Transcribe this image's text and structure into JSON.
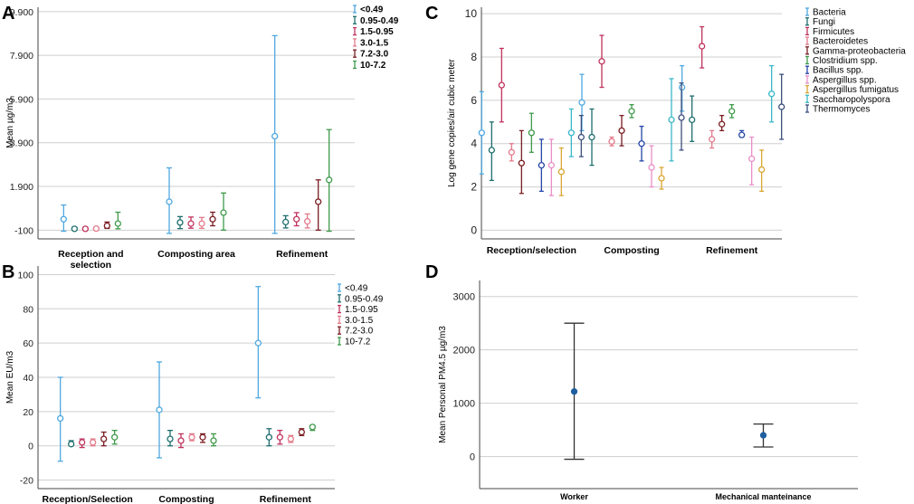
{
  "figure": {
    "panels": [
      "A",
      "B",
      "C",
      "D"
    ]
  },
  "chart_data": [
    {
      "panel": "A",
      "type": "errorbar",
      "ylabel": "Mean µg/m3",
      "yticks": [
        "-100",
        "1.900",
        "3.900",
        "5.900",
        "7.900",
        "9.900"
      ],
      "ytick_values": [
        -100,
        1900,
        3900,
        5900,
        7900,
        9900
      ],
      "ylim": [
        -500,
        10100
      ],
      "categories": [
        "Reception and\nselection",
        "Composting area",
        "Refinement"
      ],
      "series": [
        {
          "name": "<0.49",
          "color": "#4fa8e0",
          "points": [
            [
              400,
              -150,
              1050
            ],
            [
              1200,
              -250,
              2750
            ],
            [
              4200,
              -250,
              8800
            ]
          ]
        },
        {
          "name": "0.95-0.49",
          "color": "#1e6e6e",
          "points": [
            [
              -40,
              -100,
              30
            ],
            [
              250,
              -30,
              520
            ],
            [
              270,
              0,
              560
            ]
          ]
        },
        {
          "name": "1.5-0.95",
          "color": "#c0335e",
          "points": [
            [
              -40,
              -90,
              30
            ],
            [
              200,
              -10,
              500
            ],
            [
              400,
              100,
              700
            ]
          ]
        },
        {
          "name": "3.0-1.5",
          "color": "#e37a8a",
          "points": [
            [
              -30,
              -80,
              40
            ],
            [
              200,
              -20,
              480
            ],
            [
              300,
              0,
              640
            ]
          ]
        },
        {
          "name": "7.2-3.0",
          "color": "#7a1d22",
          "points": [
            [
              100,
              -20,
              270
            ],
            [
              400,
              100,
              720
            ],
            [
              1200,
              -100,
              2200
            ]
          ]
        },
        {
          "name": "10-7.2",
          "color": "#3f9a4a",
          "points": [
            [
              200,
              -40,
              720
            ],
            [
              700,
              -100,
              1600
            ],
            [
              2200,
              -150,
              4500
            ]
          ]
        }
      ],
      "legend": [
        "<0.49",
        "0.95-0.49",
        "1.5-0.95",
        "3.0-1.5",
        "7.2-3.0",
        "10-7.2"
      ]
    },
    {
      "panel": "B",
      "type": "errorbar",
      "ylabel": "Mean EU/m3",
      "yticks": [
        "-20",
        "0",
        "20",
        "40",
        "60",
        "80",
        "100"
      ],
      "ytick_values": [
        -20,
        0,
        20,
        40,
        60,
        80,
        100
      ],
      "ylim": [
        -25,
        105
      ],
      "categories": [
        "Reception/Selection",
        "Composting",
        "Refinement"
      ],
      "series": [
        {
          "name": "<0.49",
          "color": "#4fa8e0",
          "points": [
            [
              16,
              -9,
              40
            ],
            [
              21,
              -7,
              49
            ],
            [
              60,
              28,
              93
            ]
          ]
        },
        {
          "name": "0.95-0.49",
          "color": "#1e6e6e",
          "points": [
            [
              1,
              0,
              3
            ],
            [
              4,
              0,
              9
            ],
            [
              5,
              0,
              10
            ]
          ]
        },
        {
          "name": "1.5-0.95",
          "color": "#c0335e",
          "points": [
            [
              2,
              -1,
              4
            ],
            [
              3,
              -1,
              7
            ],
            [
              5,
              1,
              9
            ]
          ]
        },
        {
          "name": "3.0-1.5",
          "color": "#e37a8a",
          "points": [
            [
              2,
              0,
              4
            ],
            [
              5,
              3,
              7
            ],
            [
              4,
              2,
              6
            ]
          ]
        },
        {
          "name": "7.2-3.0",
          "color": "#7a1d22",
          "points": [
            [
              4,
              0,
              8
            ],
            [
              5,
              2,
              7
            ],
            [
              8,
              6,
              10
            ]
          ]
        },
        {
          "name": "10-7.2",
          "color": "#3f9a4a",
          "points": [
            [
              5,
              1,
              9
            ],
            [
              3,
              0,
              7
            ],
            [
              11,
              9,
              12
            ]
          ]
        }
      ],
      "legend": [
        "<0.49",
        "0.95-0.49",
        "1.5-0.95",
        "3.0-1.5",
        "7.2-3.0",
        "10-7.2"
      ]
    },
    {
      "panel": "C",
      "type": "errorbar",
      "ylabel": "Log gene copies/air cubic meter",
      "yticks": [
        "0",
        "2",
        "4",
        "6",
        "8",
        "10"
      ],
      "ytick_values": [
        0,
        2,
        4,
        6,
        8,
        10
      ],
      "ylim": [
        -0.4,
        10.3
      ],
      "categories": [
        "Reception/selection",
        "Composting",
        "Refinement"
      ],
      "series": [
        {
          "name": "Bacteria",
          "color": "#4fa8e0",
          "points": [
            [
              4.5,
              2.6,
              6.4
            ],
            [
              5.9,
              4.6,
              7.2
            ],
            [
              6.6,
              5.5,
              7.6
            ]
          ]
        },
        {
          "name": "Fungi",
          "color": "#1e6e6e",
          "points": [
            [
              3.7,
              2.3,
              5.0
            ],
            [
              4.3,
              3.0,
              5.6
            ],
            [
              5.1,
              4.1,
              6.2
            ]
          ]
        },
        {
          "name": "Firmicutes",
          "color": "#c0335e",
          "points": [
            [
              6.7,
              5.0,
              8.4
            ],
            [
              7.8,
              6.6,
              9.0
            ],
            [
              8.5,
              7.5,
              9.4
            ]
          ]
        },
        {
          "name": "Bacteroidetes",
          "color": "#e37a8a",
          "points": [
            [
              3.6,
              3.2,
              4.0
            ],
            [
              4.1,
              3.9,
              4.3
            ],
            [
              4.2,
              3.8,
              4.6
            ]
          ]
        },
        {
          "name": "Gamma-proteobacteria",
          "color": "#7a1d22",
          "points": [
            [
              3.1,
              1.7,
              4.6
            ],
            [
              4.6,
              3.9,
              5.3
            ],
            [
              4.9,
              4.6,
              5.3
            ]
          ]
        },
        {
          "name": "Clostridium spp.",
          "color": "#3f9a4a",
          "points": [
            [
              4.5,
              3.6,
              5.4
            ],
            [
              5.5,
              5.2,
              5.8
            ],
            [
              5.5,
              5.2,
              5.8
            ]
          ]
        },
        {
          "name": "Bacillus spp.",
          "color": "#2444a8",
          "points": [
            [
              3.0,
              1.8,
              4.2
            ],
            [
              4.0,
              3.2,
              4.8
            ],
            [
              4.4,
              4.3,
              4.6
            ]
          ]
        },
        {
          "name": "Aspergillus spp.",
          "color": "#e88ec6",
          "points": [
            [
              3.0,
              1.6,
              4.2
            ],
            [
              2.9,
              2.0,
              3.9
            ],
            [
              3.3,
              2.1,
              4.3
            ]
          ]
        },
        {
          "name": "Aspergillus fumigatus",
          "color": "#d9a633",
          "points": [
            [
              2.7,
              1.6,
              3.8
            ],
            [
              2.4,
              1.9,
              2.9
            ],
            [
              2.8,
              1.8,
              3.7
            ]
          ]
        },
        {
          "name": "Saccharopolyspora",
          "color": "#3ab6c8",
          "points": [
            [
              4.5,
              3.4,
              5.6
            ],
            [
              5.1,
              3.2,
              7.0
            ],
            [
              6.3,
              5.0,
              7.6
            ]
          ]
        },
        {
          "name": "Thermomyces",
          "color": "#3b4f7c",
          "points": [
            [
              4.3,
              3.4,
              5.3
            ],
            [
              5.2,
              3.7,
              6.8
            ],
            [
              5.7,
              4.2,
              7.2
            ]
          ]
        }
      ],
      "legend": [
        "Bacteria",
        "Fungi",
        "Firmicutes",
        "Bacteroidetes",
        "Gamma-proteobacteria",
        "Clostridium spp.",
        "Bacillus spp.",
        "Aspergillus spp.",
        "Aspergillus fumigatus",
        "Saccharopolyspora",
        "Thermomyces"
      ]
    },
    {
      "panel": "D",
      "type": "errorbar",
      "ylabel": "Mean Personal PM4.5 µg/m3",
      "yticks": [
        "0",
        "1000",
        "2000",
        "3000"
      ],
      "ytick_values": [
        0,
        1000,
        2000,
        3000
      ],
      "ylim": [
        -600,
        3300
      ],
      "categories": [
        "Worker",
        "Mechanical manteinance"
      ],
      "series": [
        {
          "name": "PM4.5",
          "color": "#1f5f9f",
          "points": [
            [
              1220,
              -50,
              2500
            ],
            [
              400,
              180,
              610
            ]
          ]
        }
      ],
      "legend": []
    }
  ]
}
